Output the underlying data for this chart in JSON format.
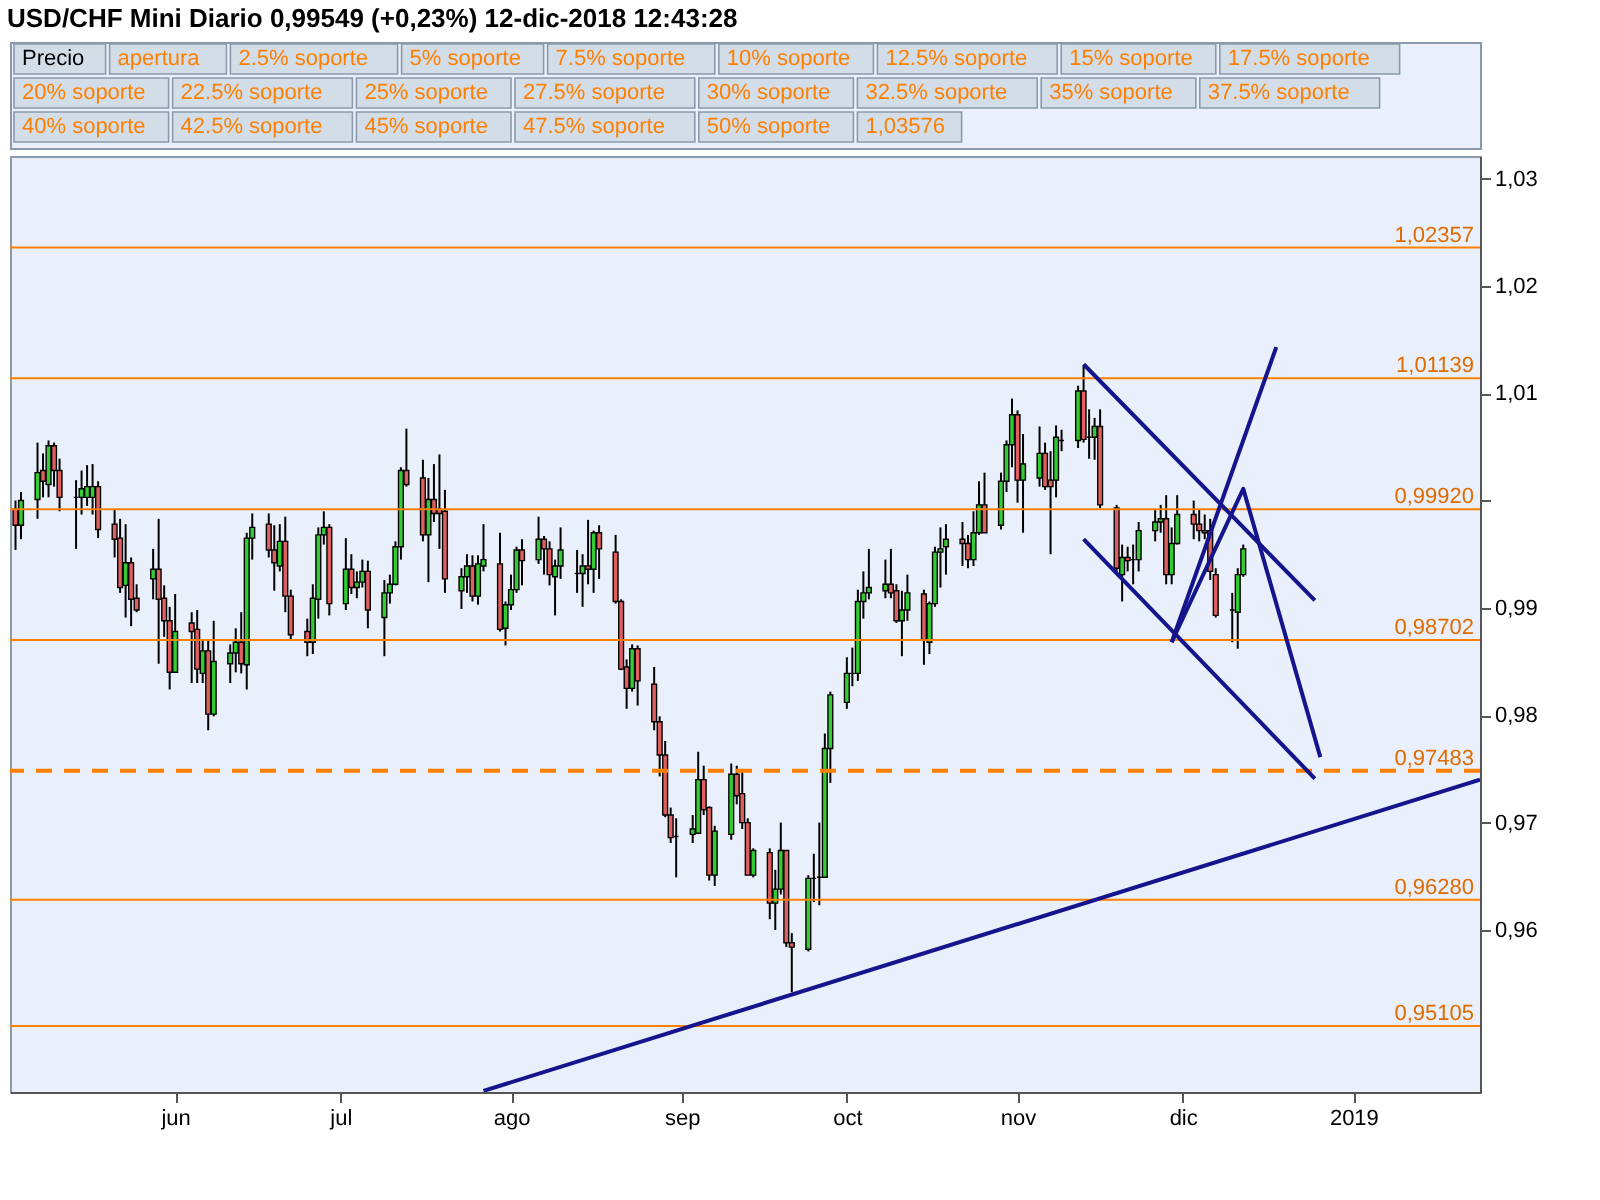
{
  "chart_data": {
    "type": "candlestick",
    "title": "USD/CHF Mini   Diario   0,99549 (+0,23%)   12-dic-2018 12:43:28",
    "annotations": [
      "Precio",
      "apertura",
      "2.5% soporte",
      "5% soporte",
      "7.5% soporte",
      "10% soporte",
      "12.5% soporte",
      "15% soporte",
      "17.5% soporte",
      "20% soporte",
      "22.5% soporte",
      "25% soporte",
      "27.5% soporte",
      "30% soporte",
      "32.5% soporte",
      "35% soporte",
      "37.5% soporte",
      "40% soporte",
      "42.5% soporte",
      "45% soporte",
      "47.5% soporte",
      "50% soporte",
      "1,03576"
    ],
    "x": [
      "2018-05-03",
      "2018-05-04",
      "2018-05-07",
      "2018-05-08",
      "2018-05-09",
      "2018-05-10",
      "2018-05-11",
      "2018-05-14",
      "2018-05-15",
      "2018-05-16",
      "2018-05-17",
      "2018-05-18",
      "2018-05-21",
      "2018-05-22",
      "2018-05-23",
      "2018-05-24",
      "2018-05-25",
      "2018-05-28",
      "2018-05-29",
      "2018-05-30",
      "2018-05-31",
      "2018-06-01",
      "2018-06-04",
      "2018-06-05",
      "2018-06-06",
      "2018-06-07",
      "2018-06-08",
      "2018-06-11",
      "2018-06-12",
      "2018-06-13",
      "2018-06-14",
      "2018-06-15",
      "2018-06-18",
      "2018-06-19",
      "2018-06-20",
      "2018-06-21",
      "2018-06-22",
      "2018-06-25",
      "2018-06-26",
      "2018-06-27",
      "2018-06-28",
      "2018-06-29",
      "2018-07-02",
      "2018-07-03",
      "2018-07-04",
      "2018-07-05",
      "2018-07-06",
      "2018-07-09",
      "2018-07-10",
      "2018-07-11",
      "2018-07-12",
      "2018-07-13",
      "2018-07-16",
      "2018-07-17",
      "2018-07-18",
      "2018-07-19",
      "2018-07-20",
      "2018-07-23",
      "2018-07-24",
      "2018-07-25",
      "2018-07-26",
      "2018-07-27",
      "2018-07-30",
      "2018-07-31",
      "2018-08-01",
      "2018-08-02",
      "2018-08-03",
      "2018-08-06",
      "2018-08-07",
      "2018-08-08",
      "2018-08-09",
      "2018-08-10",
      "2018-08-13",
      "2018-08-14",
      "2018-08-15",
      "2018-08-16",
      "2018-08-17",
      "2018-08-20",
      "2018-08-21",
      "2018-08-22",
      "2018-08-23",
      "2018-08-24",
      "2018-08-27",
      "2018-08-28",
      "2018-08-29",
      "2018-08-30",
      "2018-08-31",
      "2018-09-03",
      "2018-09-04",
      "2018-09-05",
      "2018-09-06",
      "2018-09-07",
      "2018-09-10",
      "2018-09-11",
      "2018-09-12",
      "2018-09-13",
      "2018-09-14",
      "2018-09-17",
      "2018-09-18",
      "2018-09-19",
      "2018-09-20",
      "2018-09-21",
      "2018-09-24",
      "2018-09-25",
      "2018-09-26",
      "2018-09-27",
      "2018-09-28",
      "2018-10-01",
      "2018-10-02",
      "2018-10-03",
      "2018-10-04",
      "2018-10-05",
      "2018-10-08",
      "2018-10-09",
      "2018-10-10",
      "2018-10-11",
      "2018-10-12",
      "2018-10-15",
      "2018-10-16",
      "2018-10-17",
      "2018-10-18",
      "2018-10-19",
      "2018-10-22",
      "2018-10-23",
      "2018-10-24",
      "2018-10-25",
      "2018-10-26",
      "2018-10-29",
      "2018-10-30",
      "2018-10-31",
      "2018-11-01",
      "2018-11-02",
      "2018-11-05",
      "2018-11-06",
      "2018-11-07",
      "2018-11-08",
      "2018-11-09",
      "2018-11-12",
      "2018-11-13",
      "2018-11-14",
      "2018-11-15",
      "2018-11-16",
      "2018-11-19",
      "2018-11-20",
      "2018-11-21",
      "2018-11-22",
      "2018-11-23",
      "2018-11-26",
      "2018-11-27",
      "2018-11-28",
      "2018-11-29",
      "2018-11-30",
      "2018-12-03",
      "2018-12-04",
      "2018-12-05",
      "2018-12-06",
      "2018-12-07",
      "2018-12-10",
      "2018-12-11",
      "2018-12-12"
    ],
    "ohlc": [
      [
        0.9992,
        1.0,
        0.9954,
        0.9977
      ],
      [
        0.9977,
        1.0008,
        0.9964,
        1.0
      ],
      [
        1.0001,
        1.0054,
        0.9983,
        1.0026
      ],
      [
        1.0028,
        1.0044,
        1.0003,
        1.0018
      ],
      [
        1.0015,
        1.0056,
        1.0003,
        1.0051
      ],
      [
        1.0051,
        1.0054,
        1.0013,
        1.0028
      ],
      [
        1.0028,
        1.0039,
        0.999,
        1.0003
      ],
      [
        1.0003,
        1.0019,
        0.9955,
        1.0003
      ],
      [
        1.0003,
        1.0028,
        0.9987,
        1.0011
      ],
      [
        1.0003,
        1.0033,
        0.9995,
        1.0013
      ],
      [
        1.0003,
        1.0034,
        0.9987,
        1.0013
      ],
      [
        1.0013,
        1.0018,
        0.9965,
        0.9973
      ],
      [
        0.9978,
        0.9992,
        0.9947,
        0.9964
      ],
      [
        0.9965,
        0.9983,
        0.9914,
        0.9919
      ],
      [
        0.9921,
        0.9978,
        0.9891,
        0.9942
      ],
      [
        0.9942,
        0.9947,
        0.9883,
        0.9908
      ],
      [
        0.9909,
        0.9922,
        0.9896,
        0.9898
      ],
      [
        0.9927,
        0.9955,
        0.9908,
        0.9936
      ],
      [
        0.9936,
        0.9983,
        0.9848,
        0.9908
      ],
      [
        0.9909,
        0.9921,
        0.9873,
        0.9888
      ],
      [
        0.9888,
        0.9901,
        0.9824,
        0.984
      ],
      [
        0.984,
        0.9913,
        0.984,
        0.9878
      ],
      [
        0.9886,
        0.9896,
        0.983,
        0.9878
      ],
      [
        0.988,
        0.9898,
        0.983,
        0.9843
      ],
      [
        0.9839,
        0.9871,
        0.983,
        0.986
      ],
      [
        0.986,
        0.9871,
        0.9786,
        0.9801
      ],
      [
        0.9801,
        0.9888,
        0.9799,
        0.985
      ],
      [
        0.9848,
        0.9866,
        0.983,
        0.9858
      ],
      [
        0.9858,
        0.9881,
        0.984,
        0.9868
      ],
      [
        0.9868,
        0.9896,
        0.9839,
        0.9848
      ],
      [
        0.9847,
        0.997,
        0.9824,
        0.9965
      ],
      [
        0.9965,
        0.9988,
        0.9945,
        0.9975
      ],
      [
        0.9978,
        0.9988,
        0.9947,
        0.9954
      ],
      [
        0.9954,
        0.9977,
        0.9916,
        0.9942
      ],
      [
        0.9939,
        0.9978,
        0.9934,
        0.9962
      ],
      [
        0.9962,
        0.9985,
        0.9896,
        0.9911
      ],
      [
        0.9911,
        0.9917,
        0.9871,
        0.9875
      ],
      [
        0.9878,
        0.989,
        0.9855,
        0.9868
      ],
      [
        0.9868,
        0.9922,
        0.9857,
        0.9909
      ],
      [
        0.9908,
        0.9975,
        0.989,
        0.9968
      ],
      [
        0.9968,
        0.999,
        0.9959,
        0.9975
      ],
      [
        0.9975,
        0.9978,
        0.9893,
        0.9904
      ],
      [
        0.9904,
        0.9965,
        0.9898,
        0.9936
      ],
      [
        0.9936,
        0.995,
        0.9913,
        0.9919
      ],
      [
        0.9919,
        0.9934,
        0.9909,
        0.9924
      ],
      [
        0.9924,
        0.9945,
        0.9919,
        0.9934
      ],
      [
        0.9934,
        0.9944,
        0.9881,
        0.9898
      ],
      [
        0.9891,
        0.9926,
        0.9855,
        0.9914
      ],
      [
        0.9914,
        0.9931,
        0.9904,
        0.9922
      ],
      [
        0.9922,
        0.9962,
        0.9921,
        0.9957
      ],
      [
        0.9957,
        1.0031,
        0.9945,
        1.0028
      ],
      [
        1.0028,
        1.0067,
        1.0013,
        1.0015
      ],
      [
        1.0021,
        1.0038,
        0.9962,
        0.9968
      ],
      [
        0.9968,
        1.0021,
        0.9924,
        1.0001
      ],
      [
        1.0001,
        1.0034,
        0.998,
        0.9988
      ],
      [
        0.9992,
        1.0043,
        0.9955,
        0.9988
      ],
      [
        0.999,
        1.001,
        0.9914,
        0.9927
      ],
      [
        0.9916,
        0.9937,
        0.9899,
        0.9929
      ],
      [
        0.9929,
        0.995,
        0.9914,
        0.9939
      ],
      [
        0.9939,
        0.9949,
        0.9906,
        0.9911
      ],
      [
        0.9911,
        0.9949,
        0.9903,
        0.9941
      ],
      [
        0.9939,
        0.9978,
        0.9934,
        0.9945
      ],
      [
        0.9941,
        0.997,
        0.9878,
        0.988
      ],
      [
        0.9881,
        0.9906,
        0.9865,
        0.9903
      ],
      [
        0.9903,
        0.9931,
        0.9898,
        0.9917
      ],
      [
        0.9917,
        0.9957,
        0.9914,
        0.9954
      ],
      [
        0.9954,
        0.9964,
        0.9921,
        0.9944
      ],
      [
        0.9945,
        0.9985,
        0.9941,
        0.9964
      ],
      [
        0.9964,
        0.9967,
        0.9931,
        0.9955
      ],
      [
        0.9955,
        0.9962,
        0.9921,
        0.9931
      ],
      [
        0.9929,
        0.9945,
        0.9893,
        0.9939
      ],
      [
        0.9939,
        0.9975,
        0.9927,
        0.9954
      ],
      [
        0.9932,
        0.9954,
        0.9914,
        0.9932
      ],
      [
        0.9932,
        0.995,
        0.9901,
        0.9939
      ],
      [
        0.9939,
        0.9982,
        0.9922,
        0.9936
      ],
      [
        0.9936,
        0.9972,
        0.9914,
        0.997
      ],
      [
        0.997,
        0.9977,
        0.9927,
        0.9955
      ],
      [
        0.9952,
        0.9968,
        0.9904,
        0.9906
      ],
      [
        0.9906,
        0.9908,
        0.9842,
        0.9843
      ],
      [
        0.9845,
        0.9852,
        0.9806,
        0.9825
      ],
      [
        0.9825,
        0.9866,
        0.9822,
        0.9862
      ],
      [
        0.9862,
        0.9865,
        0.9809,
        0.9832
      ],
      [
        0.9829,
        0.9845,
        0.9786,
        0.9794
      ],
      [
        0.9794,
        0.9799,
        0.9743,
        0.9763
      ],
      [
        0.9763,
        0.9776,
        0.9705,
        0.9707
      ],
      [
        0.9707,
        0.9714,
        0.9681,
        0.9686
      ],
      [
        0.9687,
        0.9704,
        0.9649,
        0.9687
      ],
      [
        0.9689,
        0.9707,
        0.9681,
        0.9694
      ],
      [
        0.969,
        0.9766,
        0.969,
        0.974
      ],
      [
        0.974,
        0.9753,
        0.9707,
        0.9712
      ],
      [
        0.9714,
        0.9715,
        0.9646,
        0.9651
      ],
      [
        0.9651,
        0.9697,
        0.9641,
        0.9692
      ],
      [
        0.9689,
        0.9755,
        0.9684,
        0.9745
      ],
      [
        0.9745,
        0.9753,
        0.9717,
        0.9725
      ],
      [
        0.9727,
        0.975,
        0.9694,
        0.97
      ],
      [
        0.97,
        0.9704,
        0.9651,
        0.9651
      ],
      [
        0.9651,
        0.9676,
        0.9649,
        0.9674
      ],
      [
        0.9672,
        0.9676,
        0.961,
        0.9625
      ],
      [
        0.9625,
        0.9656,
        0.96,
        0.9638
      ],
      [
        0.9638,
        0.97,
        0.9633,
        0.9674
      ],
      [
        0.9674,
        0.9674,
        0.9584,
        0.9588
      ],
      [
        0.9588,
        0.9597,
        0.9542,
        0.9584
      ],
      [
        0.9582,
        0.9651,
        0.958,
        0.9648
      ],
      [
        0.9648,
        0.9671,
        0.9626,
        0.9648
      ],
      [
        0.9649,
        0.97,
        0.9623,
        0.9649
      ],
      [
        0.9649,
        0.9783,
        0.9649,
        0.9769
      ],
      [
        0.9769,
        0.9822,
        0.9737,
        0.9819
      ],
      [
        0.9812,
        0.9854,
        0.9806,
        0.9839
      ],
      [
        0.9839,
        0.9863,
        0.9827,
        0.9839
      ],
      [
        0.9839,
        0.9917,
        0.9832,
        0.9906
      ],
      [
        0.9906,
        0.9934,
        0.989,
        0.9914
      ],
      [
        0.9914,
        0.9955,
        0.9908,
        0.9919
      ],
      [
        0.9916,
        0.9945,
        0.9909,
        0.9922
      ],
      [
        0.9922,
        0.9955,
        0.9909,
        0.9914
      ],
      [
        0.9916,
        0.9922,
        0.9886,
        0.9888
      ],
      [
        0.9888,
        0.9916,
        0.9855,
        0.9898
      ],
      [
        0.9898,
        0.9931,
        0.9888,
        0.9914
      ],
      [
        0.9913,
        0.9917,
        0.9847,
        0.987
      ],
      [
        0.9868,
        0.9906,
        0.9857,
        0.9904
      ],
      [
        0.9904,
        0.9957,
        0.9901,
        0.9952
      ],
      [
        0.9952,
        0.9975,
        0.9919,
        0.9955
      ],
      [
        0.9957,
        0.9978,
        0.9931,
        0.9964
      ],
      [
        0.9964,
        0.998,
        0.9939,
        0.996
      ],
      [
        0.996,
        0.9968,
        0.9937,
        0.9945
      ],
      [
        0.9945,
        0.999,
        0.9939,
        0.997
      ],
      [
        0.997,
        1.0018,
        0.9968,
        0.9996
      ],
      [
        0.9996,
        1.0026,
        0.997,
        0.997
      ],
      [
        0.9977,
        1.0026,
        0.9973,
        1.0018
      ],
      [
        1.0018,
        1.0056,
        1.0008,
        1.0052
      ],
      [
        1.0052,
        1.0095,
        1.0031,
        1.008
      ],
      [
        1.008,
        1.0084,
        0.9998,
        1.0019
      ],
      [
        1.0019,
        1.0062,
        0.997,
        1.0034
      ],
      [
        1.0021,
        1.0069,
        1.0013,
        1.0044
      ],
      [
        1.0044,
        1.0054,
        1.001,
        1.0013
      ],
      [
        1.0019,
        1.0046,
        0.995,
        1.0013
      ],
      [
        1.0019,
        1.007,
        1.0003,
        1.0059
      ],
      [
        1.0056,
        1.0066,
        1.0046,
        1.0056
      ],
      [
        1.0056,
        1.0107,
        1.0049,
        1.0102
      ],
      [
        1.0102,
        1.0126,
        1.0054,
        1.0057
      ],
      [
        1.0059,
        1.0085,
        1.0039,
        1.0059
      ],
      [
        1.0059,
        1.0077,
        1.0038,
        1.0069
      ],
      [
        1.0069,
        1.0085,
        0.9993,
        0.9996
      ],
      [
        0.9993,
        0.9996,
        0.9932,
        0.9937
      ],
      [
        0.9931,
        0.9959,
        0.9906,
        0.9947
      ],
      [
        0.9947,
        0.9957,
        0.9934,
        0.9944
      ],
      [
        0.9945,
        0.9959,
        0.9922,
        0.9945
      ],
      [
        0.9945,
        0.998,
        0.9934,
        0.9972
      ],
      [
        0.9972,
        0.9992,
        0.9962,
        0.998
      ],
      [
        0.998,
        0.9996,
        0.997,
        0.9983
      ],
      [
        0.9983,
        1.0005,
        0.9922,
        0.9931
      ],
      [
        0.9931,
        0.9975,
        0.9922,
        0.996
      ],
      [
        0.996,
        1.0005,
        0.9959,
        0.9987
      ],
      [
        0.9987,
        1.0,
        0.9964,
        0.9978
      ],
      [
        0.9978,
        0.9992,
        0.9962,
        0.9972
      ],
      [
        0.9972,
        0.9987,
        0.9964,
        0.997
      ],
      [
        0.9972,
        0.9983,
        0.9926,
        0.9934
      ],
      [
        0.9931,
        0.9937,
        0.9891,
        0.9893
      ],
      [
        0.9898,
        0.9914,
        0.9868,
        0.9898
      ],
      [
        0.9896,
        0.9937,
        0.9862,
        0.9931
      ],
      [
        0.9931,
        0.9959,
        0.9929,
        0.9955
      ]
    ],
    "xlim": [
      "2018-05-02",
      "2019-01-24"
    ],
    "xticks": [
      {
        "value": "2018-06-01",
        "label": "jun"
      },
      {
        "value": "2018-07-01",
        "label": "jul"
      },
      {
        "value": "2018-08-01",
        "label": "ago"
      },
      {
        "value": "2018-09-01",
        "label": "sep"
      },
      {
        "value": "2018-10-01",
        "label": "oct"
      },
      {
        "value": "2018-11-01",
        "label": "nov"
      },
      {
        "value": "2018-12-01",
        "label": "dic"
      },
      {
        "value": "2019-01-01",
        "label": "2019"
      }
    ],
    "ylim": [
      0.9449,
      1.0321
    ],
    "yticks": [
      {
        "value": 0.96,
        "label": "0,96"
      },
      {
        "value": 0.97,
        "label": "0,97"
      },
      {
        "value": 0.98,
        "label": "0,98"
      },
      {
        "value": 0.99,
        "label": "0,99"
      },
      {
        "value": 1.0,
        "label": null
      },
      {
        "value": 1.01,
        "label": "1,01"
      },
      {
        "value": 1.02,
        "label": "1,02"
      },
      {
        "value": 1.03,
        "label": "1,03"
      }
    ],
    "ref_lines": [
      {
        "axis": "y",
        "value": 1.02357,
        "label": "1,02357",
        "color": "#ff8000"
      },
      {
        "axis": "y",
        "value": 1.01139,
        "label": "1,01139",
        "color": "#ff8000"
      },
      {
        "axis": "y",
        "value": 0.9992,
        "label": "0,99920",
        "color": "#ff8000"
      },
      {
        "axis": "y",
        "value": 0.98702,
        "label": "0,98702",
        "color": "#ff8000"
      },
      {
        "axis": "y",
        "value": 0.97483,
        "label": "0,97483",
        "color": "#ff8000",
        "line_style": "dashed"
      },
      {
        "axis": "y",
        "value": 0.9628,
        "label": "0,96280",
        "color": "#ff8000"
      },
      {
        "axis": "y",
        "value": 0.95105,
        "label": "0,95105",
        "color": "#ff8000"
      }
    ],
    "series": [
      {
        "type": "line",
        "color": "#14148c",
        "x": [
          "2018-07-27",
          "2019-01-24"
        ],
        "values": [
          0.945,
          0.974
        ]
      },
      {
        "type": "line",
        "color": "#14148c",
        "x": [
          "2018-11-13",
          "2018-12-25"
        ],
        "values": [
          1.0127,
          0.9907
        ]
      },
      {
        "type": "line",
        "color": "#14148c",
        "x": [
          "2018-11-13",
          "2018-12-25"
        ],
        "values": [
          0.9964,
          0.9741
        ]
      },
      {
        "type": "line",
        "color": "#14148c",
        "x": [
          "2018-11-29",
          "2018-12-18"
        ],
        "values": [
          0.9868,
          1.0143
        ]
      },
      {
        "type": "line",
        "color": "#14148c",
        "x": [
          "2018-11-29",
          "2018-12-12",
          "2018-12-26"
        ],
        "values": [
          0.9868,
          1.0011,
          0.9761
        ]
      }
    ]
  }
}
